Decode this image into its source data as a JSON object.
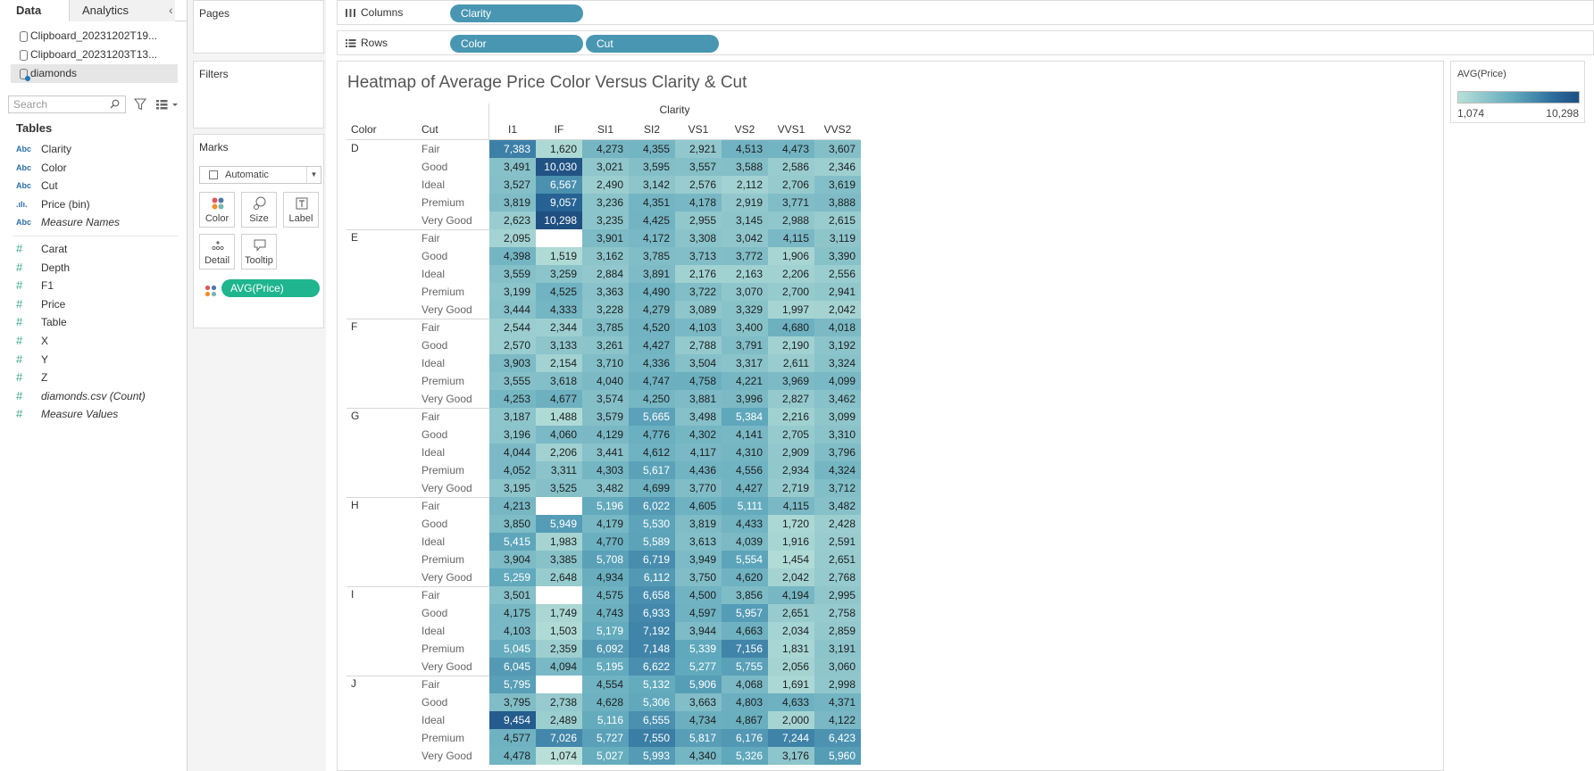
{
  "left_pane": {
    "tabs": [
      "Data",
      "Analytics"
    ],
    "data_sources": [
      {
        "name": "Clipboard_20231202T19..."
      },
      {
        "name": "Clipboard_20231203T13..."
      },
      {
        "name": "diamonds"
      }
    ],
    "search_placeholder": "Search",
    "tables_heading": "Tables",
    "dimensions": [
      {
        "type": "Abc",
        "name": "Clarity"
      },
      {
        "type": "Abc",
        "name": "Color"
      },
      {
        "type": "Abc",
        "name": "Cut"
      },
      {
        "type": ".ılı.",
        "name": "Price (bin)"
      },
      {
        "type": "Abc",
        "name": "Measure Names"
      }
    ],
    "measures": [
      {
        "type": "#",
        "name": "Carat"
      },
      {
        "type": "#",
        "name": "Depth"
      },
      {
        "type": "#",
        "name": "F1"
      },
      {
        "type": "#",
        "name": "Price"
      },
      {
        "type": "#",
        "name": "Table"
      },
      {
        "type": "#",
        "name": "X"
      },
      {
        "type": "#",
        "name": "Y"
      },
      {
        "type": "#",
        "name": "Z"
      },
      {
        "type": "#",
        "name": "diamonds.csv (Count)"
      },
      {
        "type": "#",
        "name": "Measure Values"
      }
    ]
  },
  "cards": {
    "pages": "Pages",
    "filters": "Filters",
    "marks": {
      "title": "Marks",
      "mark_type": "Automatic",
      "buttons": [
        "Color",
        "Size",
        "Label",
        "Detail",
        "Tooltip"
      ],
      "color_pill": "AVG(Price)"
    }
  },
  "shelves": {
    "columns": {
      "label": "Columns",
      "pills": [
        "Clarity"
      ]
    },
    "rows": {
      "label": "Rows",
      "pills": [
        "Color",
        "Cut"
      ]
    }
  },
  "view": {
    "title": "Heatmap of Average Price Color Versus Clarity & Cut"
  },
  "legend": {
    "title": "AVG(Price)",
    "min": "1,074",
    "max": "10,298",
    "colors": [
      "#b8e0d9",
      "#62aabd",
      "#2a6b9c",
      "#1f4f80"
    ]
  },
  "chart_data": {
    "type": "heatmap",
    "title": "Heatmap of Average Price Color Versus Clarity & Cut",
    "column_header": "Clarity",
    "row_headers": [
      "Color",
      "Cut"
    ],
    "columns": [
      "I1",
      "IF",
      "SI1",
      "SI2",
      "VS1",
      "VS2",
      "VVS1",
      "VVS2"
    ],
    "cuts": [
      "Fair",
      "Good",
      "Ideal",
      "Premium",
      "Very Good"
    ],
    "value_range": [
      1074,
      10298
    ],
    "groups": [
      {
        "color": "D",
        "rows": [
          [
            7383,
            1620,
            4273,
            4355,
            2921,
            4513,
            4473,
            3607
          ],
          [
            3491,
            10030,
            3021,
            3595,
            3557,
            3588,
            2586,
            2346
          ],
          [
            3527,
            6567,
            2490,
            3142,
            2576,
            2112,
            2706,
            3619
          ],
          [
            3819,
            9057,
            3236,
            4351,
            4178,
            2919,
            3771,
            3888
          ],
          [
            2623,
            10298,
            3235,
            4425,
            2955,
            3145,
            2988,
            2615
          ]
        ]
      },
      {
        "color": "E",
        "rows": [
          [
            2095,
            null,
            3901,
            4172,
            3308,
            3042,
            4115,
            3119
          ],
          [
            4398,
            1519,
            3162,
            3785,
            3713,
            3772,
            1906,
            3390
          ],
          [
            3559,
            3259,
            2884,
            3891,
            2176,
            2163,
            2206,
            2556
          ],
          [
            3199,
            4525,
            3363,
            4490,
            3722,
            3070,
            2700,
            2941
          ],
          [
            3444,
            4333,
            3228,
            4279,
            3089,
            3329,
            1997,
            2042
          ]
        ]
      },
      {
        "color": "F",
        "rows": [
          [
            2544,
            2344,
            3785,
            4520,
            4103,
            3400,
            4680,
            4018
          ],
          [
            2570,
            3133,
            3261,
            4427,
            2788,
            3791,
            2190,
            3192
          ],
          [
            3903,
            2154,
            3710,
            4336,
            3504,
            3317,
            2611,
            3324
          ],
          [
            3555,
            3618,
            4040,
            4747,
            4758,
            4221,
            3969,
            4099
          ],
          [
            4253,
            4677,
            3574,
            4250,
            3881,
            3996,
            2827,
            3462
          ]
        ]
      },
      {
        "color": "G",
        "rows": [
          [
            3187,
            1488,
            3579,
            5665,
            3498,
            5384,
            2216,
            3099
          ],
          [
            3196,
            4060,
            4129,
            4776,
            4302,
            4141,
            2705,
            3310
          ],
          [
            4044,
            2206,
            3441,
            4612,
            4117,
            4310,
            2909,
            3796
          ],
          [
            4052,
            3311,
            4303,
            5617,
            4436,
            4556,
            2934,
            4324
          ],
          [
            3195,
            3525,
            3482,
            4699,
            3770,
            4427,
            2719,
            3712
          ]
        ]
      },
      {
        "color": "H",
        "rows": [
          [
            4213,
            null,
            5196,
            6022,
            4605,
            5111,
            4115,
            3482
          ],
          [
            3850,
            5949,
            4179,
            5530,
            3819,
            4433,
            1720,
            2428
          ],
          [
            5415,
            1983,
            4770,
            5589,
            3613,
            4039,
            1916,
            2591
          ],
          [
            3904,
            3385,
            5708,
            6719,
            3949,
            5554,
            1454,
            2651
          ],
          [
            5259,
            2648,
            4934,
            6112,
            3750,
            4620,
            2042,
            2768
          ]
        ]
      },
      {
        "color": "I",
        "rows": [
          [
            3501,
            null,
            4575,
            6658,
            4500,
            3856,
            4194,
            2995
          ],
          [
            4175,
            1749,
            4743,
            6933,
            4597,
            5957,
            2651,
            2758
          ],
          [
            4103,
            1503,
            5179,
            7192,
            3944,
            4663,
            2034,
            2859
          ],
          [
            5045,
            2359,
            6092,
            7148,
            5339,
            7156,
            1831,
            3191
          ],
          [
            6045,
            4094,
            5195,
            6622,
            5277,
            5755,
            2056,
            3060
          ]
        ]
      },
      {
        "color": "J",
        "rows": [
          [
            5795,
            null,
            4554,
            5132,
            5906,
            4068,
            1691,
            2998
          ],
          [
            3795,
            2738,
            4628,
            5306,
            3663,
            4803,
            4633,
            4371
          ],
          [
            9454,
            2489,
            5116,
            6555,
            4734,
            4867,
            2000,
            4122
          ],
          [
            4577,
            7026,
            5727,
            7550,
            5817,
            6176,
            7244,
            6423
          ],
          [
            4478,
            1074,
            5027,
            5993,
            4340,
            5326,
            3176,
            5960
          ]
        ]
      }
    ]
  }
}
